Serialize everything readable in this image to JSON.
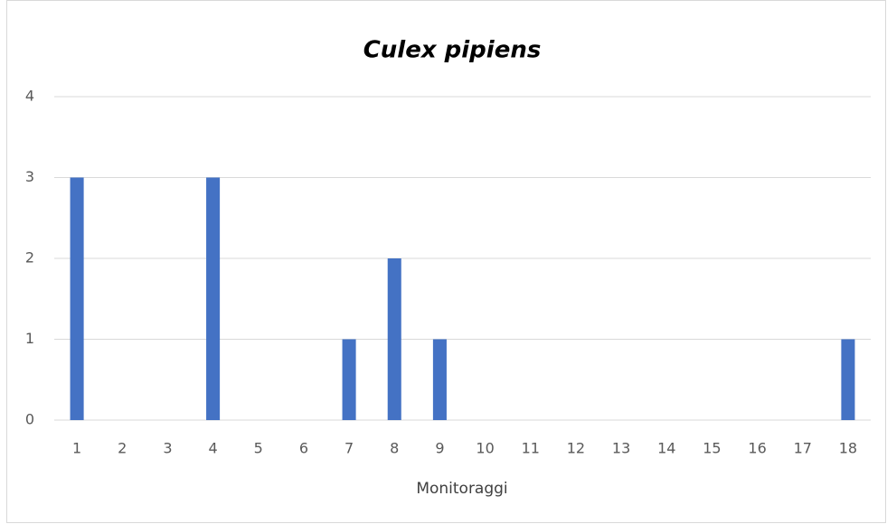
{
  "chart_data": {
    "type": "bar",
    "title": "Culex pipiens",
    "x_label": "Monitoraggi",
    "categories": [
      "1",
      "2",
      "3",
      "4",
      "5",
      "6",
      "7",
      "8",
      "9",
      "10",
      "11",
      "12",
      "13",
      "14",
      "15",
      "16",
      "17",
      "18"
    ],
    "values": [
      3,
      0,
      0,
      3,
      0,
      0,
      1,
      2,
      1,
      0,
      0,
      0,
      0,
      0,
      0,
      0,
      0,
      1
    ],
    "color": "#4472c4",
    "ylim": [
      0,
      4
    ],
    "yticks": [
      0,
      1,
      2,
      3,
      4
    ],
    "grid": true
  }
}
